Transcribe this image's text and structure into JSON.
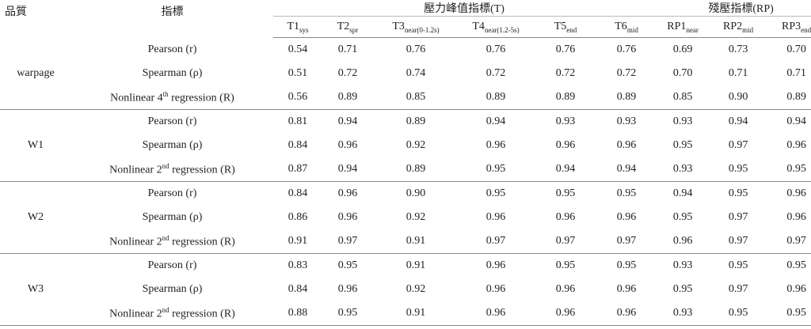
{
  "table": {
    "headers": {
      "quality": "品質",
      "metric": "指標",
      "group_t": "壓力峰值指標(T)",
      "group_rp": "殘壓指標(RP)",
      "columns": [
        {
          "main": "T1",
          "sub": "sys"
        },
        {
          "main": "T2",
          "sub": "spr"
        },
        {
          "main": "T3",
          "sub": "near(0-1.2s)"
        },
        {
          "main": "T4",
          "sub": "near(1.2-5s)"
        },
        {
          "main": "T5",
          "sub": "end"
        },
        {
          "main": "T6",
          "sub": "mid"
        },
        {
          "main": "RP1",
          "sub": "near"
        },
        {
          "main": "RP2",
          "sub": "mid"
        },
        {
          "main": "RP3",
          "sub": "end"
        }
      ]
    },
    "groups": [
      {
        "name": "warpage",
        "rows": [
          {
            "label": "Pearson (r)",
            "values": [
              "0.54",
              "0.71",
              "0.76",
              "0.76",
              "0.76",
              "0.76",
              "0.69",
              "0.73",
              "0.70"
            ]
          },
          {
            "label": "Spearman (ρ)",
            "values": [
              "0.51",
              "0.72",
              "0.74",
              "0.72",
              "0.72",
              "0.72",
              "0.70",
              "0.71",
              "0.71"
            ]
          },
          {
            "label": {
              "pre": "Nonlinear 4",
              "sup": "th",
              "post": " regression (R)"
            },
            "values": [
              "0.56",
              "0.89",
              "0.85",
              "0.89",
              "0.89",
              "0.89",
              "0.85",
              "0.90",
              "0.89"
            ]
          }
        ]
      },
      {
        "name": "W1",
        "rows": [
          {
            "label": "Pearson (r)",
            "values": [
              "0.81",
              "0.94",
              "0.89",
              "0.94",
              "0.93",
              "0.93",
              "0.93",
              "0.94",
              "0.94"
            ]
          },
          {
            "label": "Spearman (ρ)",
            "values": [
              "0.84",
              "0.96",
              "0.92",
              "0.96",
              "0.96",
              "0.96",
              "0.95",
              "0.97",
              "0.96"
            ]
          },
          {
            "label": {
              "pre": "Nonlinear 2",
              "sup": "nd",
              "post": " regression (R)"
            },
            "values": [
              "0.87",
              "0.94",
              "0.89",
              "0.95",
              "0.94",
              "0.94",
              "0.93",
              "0.95",
              "0.95"
            ]
          }
        ]
      },
      {
        "name": "W2",
        "rows": [
          {
            "label": "Pearson (r)",
            "values": [
              "0.84",
              "0.96",
              "0.90",
              "0.95",
              "0.95",
              "0.95",
              "0.94",
              "0.95",
              "0.96"
            ]
          },
          {
            "label": "Spearman (ρ)",
            "values": [
              "0.86",
              "0.96",
              "0.92",
              "0.96",
              "0.96",
              "0.96",
              "0.95",
              "0.97",
              "0.96"
            ]
          },
          {
            "label": {
              "pre": "Nonlinear 2",
              "sup": "nd",
              "post": " regression (R)"
            },
            "values": [
              "0.91",
              "0.97",
              "0.91",
              "0.97",
              "0.97",
              "0.97",
              "0.96",
              "0.97",
              "0.97"
            ]
          }
        ]
      },
      {
        "name": "W3",
        "rows": [
          {
            "label": "Pearson (r)",
            "values": [
              "0.83",
              "0.95",
              "0.91",
              "0.96",
              "0.95",
              "0.95",
              "0.93",
              "0.95",
              "0.95"
            ]
          },
          {
            "label": "Spearman (ρ)",
            "values": [
              "0.84",
              "0.96",
              "0.92",
              "0.96",
              "0.96",
              "0.96",
              "0.95",
              "0.97",
              "0.96"
            ]
          },
          {
            "label": {
              "pre": "Nonlinear 2",
              "sup": "nd",
              "post": " regression (R)"
            },
            "values": [
              "0.88",
              "0.95",
              "0.91",
              "0.96",
              "0.96",
              "0.96",
              "0.93",
              "0.95",
              "0.95"
            ]
          }
        ]
      }
    ]
  }
}
